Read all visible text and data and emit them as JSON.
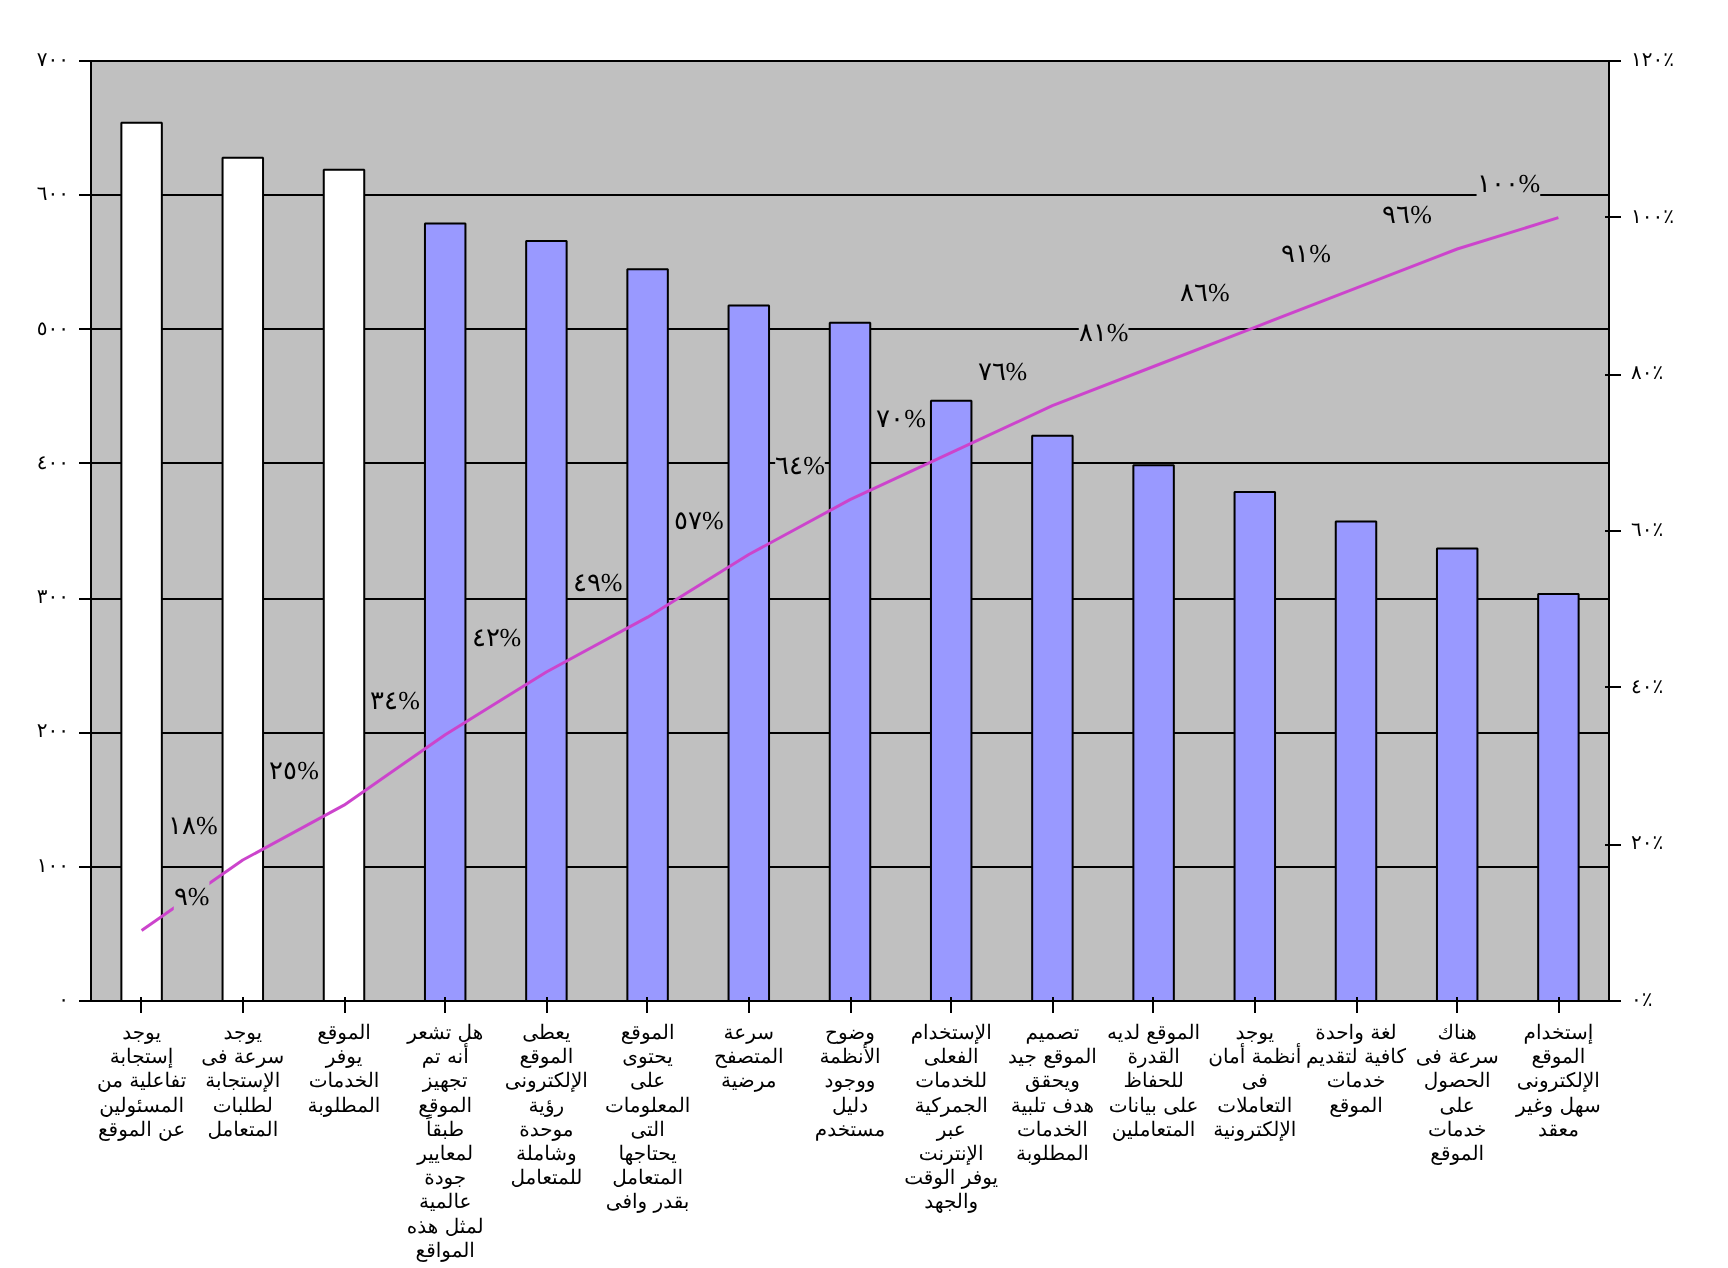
{
  "chart_data": {
    "type": "bar",
    "categories": [
      "يوجد\nإستجابة\nتفاعلية من\nالمسئولين\nعن الموقع",
      "يوجد\nسرعة فى\nالإستجابة\nلطلبات\nالمتعامل",
      "الموقع\nيوفر\nالخدمات\nالمطلوبة",
      "هل تشعر\nأنه تم\nتجهيز\nالموقع\nطبقاً\nلمعايير\nجودة\nعالمية\nلمثل هذه\nالمواقع",
      "يعطى\nالموقع\nالإلكترونى\nرؤية\nموحدة\nوشاملة\nللمتعامل",
      "الموقع\nيحتوى\nعلى\nالمعلومات\nالتى\nيحتاجها\nالمتعامل\nبقدر وافى",
      "سرعة\nالمتصفح\nمرضية",
      "وضوح\nالأنظمة\nووجود\nدليل\nمستخدم",
      "الإستخدام\nالفعلى\nللخدمات\nالجمركية\nعبر\nالإنترنت\nيوفر الوقت\nوالجهد",
      "تصميم\nالموقع جيد\nويحقق\nهدف تلبية\nالخدمات\nالمطلوبة",
      "الموقع لديه\nالقدرة\nللحفاظ\nعلى بيانات\nالمتعاملين",
      "يوجد\nأنظمة أمان\nفى\nالتعاملات\nالإلكترونية",
      "لغة واحدة\nكافية لتقديم\nخدمات\nالموقع",
      "هناك\nسرعة فى\nالحصول\nعلى\nخدمات\nالموقع",
      "إستخدام\nالموقع\nالإلكترونى\nسهل وغير\nمعقد"
    ],
    "series": [
      {
        "values": [
          654,
          628,
          619,
          579,
          566,
          545,
          518,
          505,
          447,
          421,
          399,
          379,
          357,
          337,
          303
        ],
        "colors": [
          "#ffffff",
          "#ffffff",
          "#ffffff",
          "#9999ff",
          "#9999ff",
          "#9999ff",
          "#9999ff",
          "#9999ff",
          "#9999ff",
          "#9999ff",
          "#9999ff",
          "#9999ff",
          "#9999ff",
          "#9999ff",
          "#9999ff"
        ]
      },
      {
        "type": "line",
        "axis": "y2",
        "color": "#cc44cc",
        "values": [
          9,
          18,
          25,
          34,
          42,
          49,
          57,
          64,
          70,
          76,
          81,
          86,
          91,
          96,
          100
        ],
        "value_labels": [
          "٩%",
          "١٨%",
          "٢٥%",
          "٣٤%",
          "٤٢%",
          "٤٩%",
          "٥٧%",
          "٦٤%",
          "٧٠%",
          "٧٦%",
          "٨١%",
          "٨٦%",
          "٩١%",
          "٩٦%",
          "١٠٠%"
        ]
      }
    ],
    "ylim": [
      0,
      700
    ],
    "yticks": [
      {
        "value": 0,
        "label": "٠"
      },
      {
        "value": 100,
        "label": "١٠٠"
      },
      {
        "value": 200,
        "label": "٢٠٠"
      },
      {
        "value": 300,
        "label": "٣٠٠"
      },
      {
        "value": 400,
        "label": "٤٠٠"
      },
      {
        "value": 500,
        "label": "٥٠٠"
      },
      {
        "value": 600,
        "label": "٦٠٠"
      },
      {
        "value": 700,
        "label": "٧٠٠"
      }
    ],
    "y2lim": [
      0,
      120
    ],
    "y2ticks": [
      {
        "value": 0,
        "label": "٠٪"
      },
      {
        "value": 20,
        "label": "٢٠٪"
      },
      {
        "value": 40,
        "label": "٤٠٪"
      },
      {
        "value": 60,
        "label": "٦٠٪"
      },
      {
        "value": 80,
        "label": "٨٠٪"
      },
      {
        "value": 100,
        "label": "١٠٠٪"
      },
      {
        "value": 120,
        "label": "١٢٠٪"
      }
    ],
    "grid": "y"
  }
}
